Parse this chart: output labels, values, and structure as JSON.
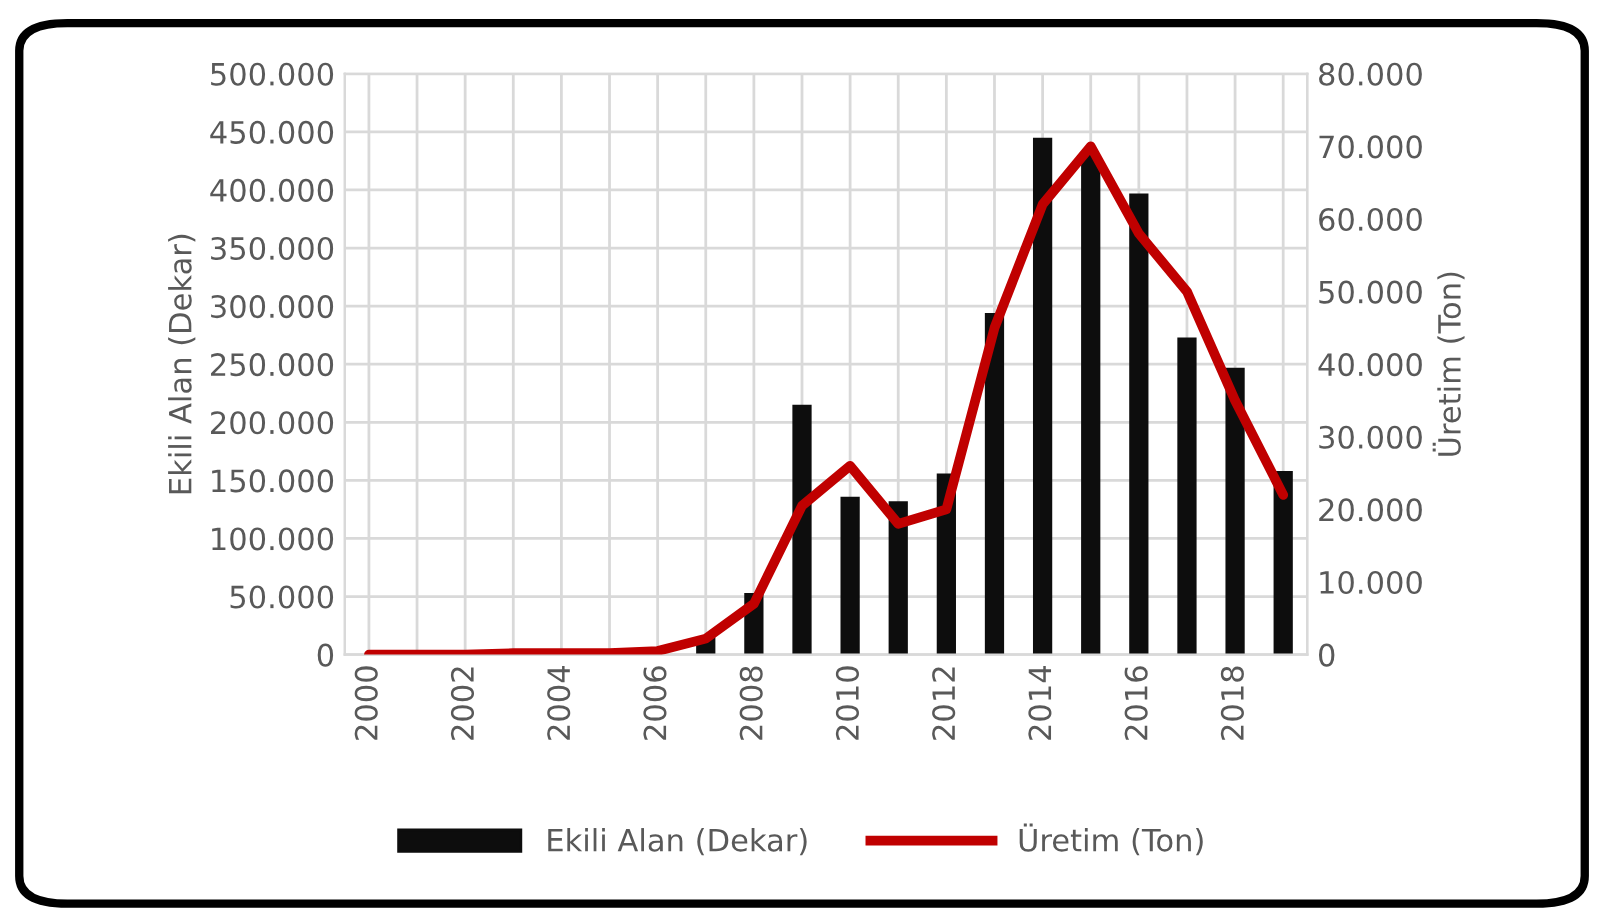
{
  "chart_data": {
    "type": "bar",
    "categories": [
      "2000",
      null,
      "2002",
      null,
      "2004",
      null,
      "2006",
      null,
      "2008",
      null,
      "2010",
      null,
      "2012",
      null,
      "2014",
      null,
      "2016",
      null,
      "2018",
      null
    ],
    "ylabel": "Ekili Alan (Dekar)",
    "y2label": "Üretim (Ton)",
    "series": [
      {
        "name": "Ekili Alan (Dekar)",
        "color": "#0d0d0d",
        "values": [
          0,
          0,
          0,
          0,
          0,
          0,
          0,
          15000,
          53000,
          215000,
          136000,
          132000,
          156000,
          294000,
          445000,
          430000,
          397000,
          273000,
          247000,
          158000
        ]
      },
      {
        "name": "Üretim (Ton)",
        "type": "line",
        "axis": "y2",
        "color": "#c00000",
        "values": [
          0,
          0,
          0,
          200,
          200,
          200,
          500,
          2200,
          7000,
          20500,
          26000,
          18000,
          20000,
          45000,
          62000,
          70000,
          58000,
          50000,
          35000,
          22000
        ]
      }
    ],
    "ylim": [
      0,
      500000
    ],
    "yticks": [
      {
        "value": 0,
        "label": "0"
      },
      {
        "value": 50000,
        "label": "50.000"
      },
      {
        "value": 100000,
        "label": "100.000"
      },
      {
        "value": 150000,
        "label": "150.000"
      },
      {
        "value": 200000,
        "label": "200.000"
      },
      {
        "value": 250000,
        "label": "250.000"
      },
      {
        "value": 300000,
        "label": "300.000"
      },
      {
        "value": 350000,
        "label": "350.000"
      },
      {
        "value": 400000,
        "label": "400.000"
      },
      {
        "value": 450000,
        "label": "450.000"
      },
      {
        "value": 500000,
        "label": "500.000"
      }
    ],
    "y2lim": [
      0,
      80000
    ],
    "y2ticks": [
      {
        "value": 0,
        "label": "0"
      },
      {
        "value": 10000,
        "label": "10.000"
      },
      {
        "value": 20000,
        "label": "20.000"
      },
      {
        "value": 30000,
        "label": "30.000"
      },
      {
        "value": 40000,
        "label": "40.000"
      },
      {
        "value": 50000,
        "label": "50.000"
      },
      {
        "value": 60000,
        "label": "60.000"
      },
      {
        "value": 70000,
        "label": "70.000"
      },
      {
        "value": 80000,
        "label": "80.000"
      }
    ],
    "grid": true,
    "legend": "bottom"
  }
}
